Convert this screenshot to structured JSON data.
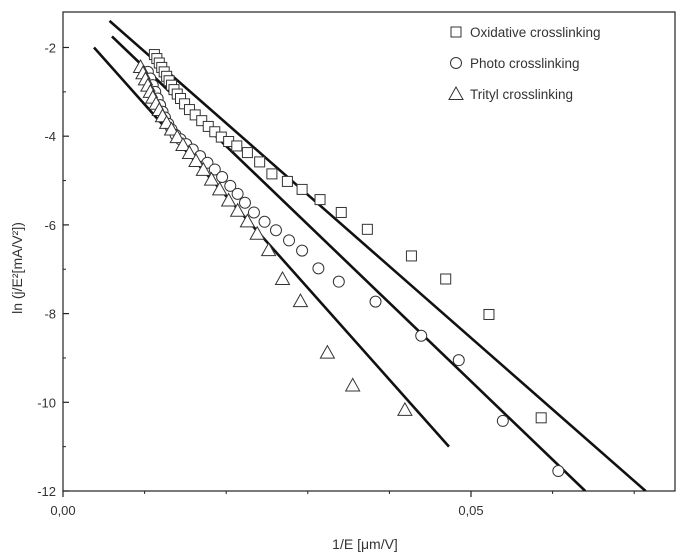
{
  "chart_data": {
    "type": "scatter",
    "title": "",
    "xlabel": "1/E [μm/V]",
    "ylabel": "ln (j/E²[mA/V²])",
    "xlim": [
      0,
      0.075
    ],
    "ylim": [
      -12,
      -1.2
    ],
    "x_tick_labels": [
      {
        "value": 0,
        "label": "0,00"
      },
      {
        "value": 0.05,
        "label": "0,05"
      }
    ],
    "x_minor_ticks": [
      0.01,
      0.02,
      0.03,
      0.04,
      0.06,
      0.07
    ],
    "y_ticks": [
      -12,
      -10,
      -8,
      -6,
      -4,
      -2
    ],
    "y_minor_ticks": [
      -11,
      -9,
      -7,
      -5,
      -3
    ],
    "grid": false,
    "legend_position": "top-right",
    "series": [
      {
        "name": "Oxidative crosslinking",
        "marker": "square",
        "points": [
          [
            0.0112,
            -2.16
          ],
          [
            0.0115,
            -2.25
          ],
          [
            0.0118,
            -2.35
          ],
          [
            0.0121,
            -2.45
          ],
          [
            0.0124,
            -2.55
          ],
          [
            0.0127,
            -2.65
          ],
          [
            0.013,
            -2.75
          ],
          [
            0.0133,
            -2.85
          ],
          [
            0.0136,
            -2.95
          ],
          [
            0.014,
            -3.05
          ],
          [
            0.0144,
            -3.15
          ],
          [
            0.0149,
            -3.27
          ],
          [
            0.0155,
            -3.4
          ],
          [
            0.0162,
            -3.52
          ],
          [
            0.017,
            -3.65
          ],
          [
            0.0178,
            -3.78
          ],
          [
            0.0186,
            -3.9
          ],
          [
            0.0194,
            -4.02
          ],
          [
            0.0203,
            -4.12
          ],
          [
            0.0213,
            -4.22
          ],
          [
            0.0226,
            -4.37
          ],
          [
            0.0241,
            -4.58
          ],
          [
            0.0256,
            -4.85
          ],
          [
            0.0275,
            -5.02
          ],
          [
            0.0293,
            -5.2
          ],
          [
            0.0315,
            -5.43
          ],
          [
            0.0341,
            -5.72
          ],
          [
            0.0373,
            -6.1
          ],
          [
            0.0427,
            -6.7
          ],
          [
            0.0469,
            -7.22
          ],
          [
            0.0522,
            -8.02
          ],
          [
            0.0586,
            -10.35
          ]
        ],
        "fit_line": [
          [
            0.0057,
            -1.4
          ],
          [
            0.0714,
            -12.0
          ]
        ]
      },
      {
        "name": "Photo crosslinking",
        "marker": "circle",
        "points": [
          [
            0.0104,
            -2.55
          ],
          [
            0.0107,
            -2.7
          ],
          [
            0.011,
            -2.85
          ],
          [
            0.0113,
            -3.0
          ],
          [
            0.0116,
            -3.15
          ],
          [
            0.0119,
            -3.3
          ],
          [
            0.0122,
            -3.45
          ],
          [
            0.0125,
            -3.58
          ],
          [
            0.0129,
            -3.72
          ],
          [
            0.0133,
            -3.85
          ],
          [
            0.0138,
            -3.97
          ],
          [
            0.0144,
            -4.07
          ],
          [
            0.0151,
            -4.18
          ],
          [
            0.0159,
            -4.3
          ],
          [
            0.0168,
            -4.45
          ],
          [
            0.0177,
            -4.6
          ],
          [
            0.0186,
            -4.75
          ],
          [
            0.0195,
            -4.92
          ],
          [
            0.0205,
            -5.12
          ],
          [
            0.0214,
            -5.3
          ],
          [
            0.0223,
            -5.5
          ],
          [
            0.0234,
            -5.72
          ],
          [
            0.0247,
            -5.93
          ],
          [
            0.0261,
            -6.12
          ],
          [
            0.0277,
            -6.35
          ],
          [
            0.0293,
            -6.58
          ],
          [
            0.0313,
            -6.98
          ],
          [
            0.0338,
            -7.28
          ],
          [
            0.0383,
            -7.73
          ],
          [
            0.0439,
            -8.5
          ],
          [
            0.0485,
            -9.05
          ],
          [
            0.0539,
            -10.42
          ],
          [
            0.0607,
            -11.55
          ]
        ],
        "fit_line": [
          [
            0.006,
            -1.75
          ],
          [
            0.064,
            -12.0
          ]
        ]
      },
      {
        "name": "Trityl crosslinking",
        "marker": "triangle",
        "points": [
          [
            0.0095,
            -2.44
          ],
          [
            0.0098,
            -2.58
          ],
          [
            0.0101,
            -2.72
          ],
          [
            0.0104,
            -2.86
          ],
          [
            0.0107,
            -3.0
          ],
          [
            0.011,
            -3.13
          ],
          [
            0.0114,
            -3.27
          ],
          [
            0.0118,
            -3.41
          ],
          [
            0.0122,
            -3.55
          ],
          [
            0.0127,
            -3.7
          ],
          [
            0.0133,
            -3.85
          ],
          [
            0.014,
            -4.02
          ],
          [
            0.0147,
            -4.2
          ],
          [
            0.0155,
            -4.38
          ],
          [
            0.0163,
            -4.56
          ],
          [
            0.0172,
            -4.76
          ],
          [
            0.0182,
            -4.98
          ],
          [
            0.0192,
            -5.2
          ],
          [
            0.0203,
            -5.45
          ],
          [
            0.0214,
            -5.68
          ],
          [
            0.0226,
            -5.92
          ],
          [
            0.0238,
            -6.2
          ],
          [
            0.0252,
            -6.57
          ],
          [
            0.0269,
            -7.22
          ],
          [
            0.0291,
            -7.72
          ],
          [
            0.0324,
            -8.88
          ],
          [
            0.0355,
            -9.62
          ],
          [
            0.0419,
            -10.17
          ]
        ],
        "fit_line": [
          [
            0.0038,
            -2.0
          ],
          [
            0.0473,
            -11.0
          ]
        ]
      }
    ]
  }
}
